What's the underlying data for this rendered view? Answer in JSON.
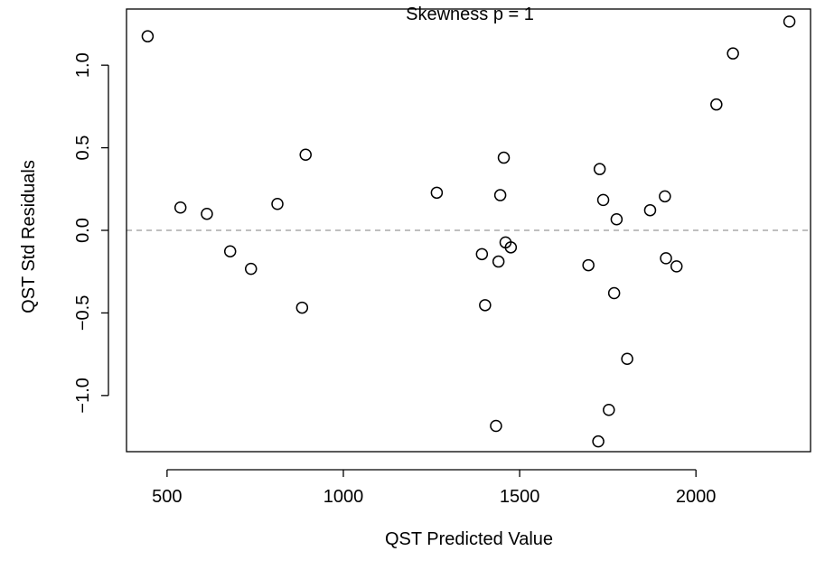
{
  "chart_data": {
    "type": "scatter",
    "title": "Skewness p =  1",
    "xlabel": "QST Predicted Value",
    "ylabel": "QST Std Residuals",
    "xlim": [
      385,
      2325
    ],
    "ylim": [
      -1.34,
      1.34
    ],
    "xticks": [
      500,
      1000,
      1500,
      2000
    ],
    "xtick_labels": [
      "500",
      "1000",
      "1500",
      "2000"
    ],
    "yticks": [
      -1.0,
      -0.5,
      0.0,
      0.5,
      1.0
    ],
    "ytick_labels": [
      "−1.0",
      "−0.5",
      "0.0",
      "0.5",
      "1.0"
    ],
    "reference_line": {
      "y": 0.0,
      "style": "dashed",
      "color": "#999999"
    },
    "grid": false,
    "marker": "open-circle",
    "points": [
      {
        "x": 445,
        "y": 1.175
      },
      {
        "x": 538,
        "y": 0.138
      },
      {
        "x": 613,
        "y": 0.1
      },
      {
        "x": 679,
        "y": -0.127
      },
      {
        "x": 738,
        "y": -0.233
      },
      {
        "x": 813,
        "y": 0.16
      },
      {
        "x": 883,
        "y": -0.468
      },
      {
        "x": 893,
        "y": 0.458
      },
      {
        "x": 1265,
        "y": 0.228
      },
      {
        "x": 1393,
        "y": -0.144
      },
      {
        "x": 1402,
        "y": -0.453
      },
      {
        "x": 1433,
        "y": -1.184
      },
      {
        "x": 1440,
        "y": -0.189
      },
      {
        "x": 1445,
        "y": 0.213
      },
      {
        "x": 1455,
        "y": 0.44
      },
      {
        "x": 1460,
        "y": -0.073
      },
      {
        "x": 1475,
        "y": -0.103
      },
      {
        "x": 1695,
        "y": -0.211
      },
      {
        "x": 1723,
        "y": -1.278
      },
      {
        "x": 1727,
        "y": 0.371
      },
      {
        "x": 1737,
        "y": 0.184
      },
      {
        "x": 1753,
        "y": -1.087
      },
      {
        "x": 1768,
        "y": -0.38
      },
      {
        "x": 1775,
        "y": 0.067
      },
      {
        "x": 1805,
        "y": -0.778
      },
      {
        "x": 1870,
        "y": 0.122
      },
      {
        "x": 1912,
        "y": 0.206
      },
      {
        "x": 1915,
        "y": -0.169
      },
      {
        "x": 1945,
        "y": -0.218
      },
      {
        "x": 2058,
        "y": 0.762
      },
      {
        "x": 2105,
        "y": 1.071
      },
      {
        "x": 2265,
        "y": 1.264
      }
    ]
  }
}
